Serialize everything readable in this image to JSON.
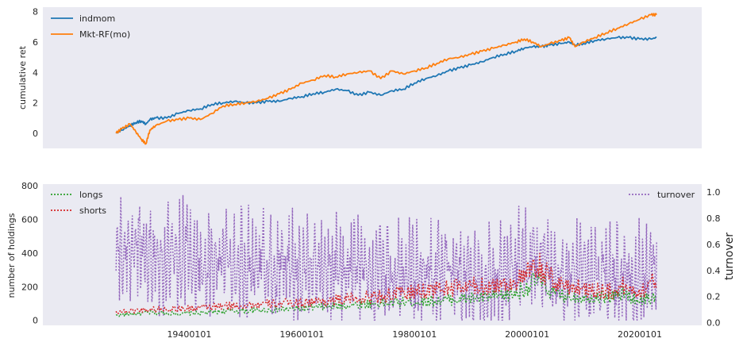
{
  "chart_data": [
    {
      "type": "line",
      "panel": "top",
      "title": "",
      "xlabel": "",
      "ylabel": "cumulative ret",
      "ylim": [
        -1.0,
        8.3
      ],
      "yticks": [
        0,
        2,
        4,
        6,
        8
      ],
      "grid": false,
      "background": "#eaeaf2",
      "legend": "top-left",
      "x": [
        1927.0,
        1928.0,
        1929.5,
        1930.5,
        1931.5,
        1932.3,
        1933.0,
        1934.0,
        1936.0,
        1938.0,
        1940.0,
        1942.0,
        1944.0,
        1946.0,
        1948.0,
        1950.0,
        1952.0,
        1954.0,
        1956.0,
        1958.0,
        1960.0,
        1962.0,
        1964.0,
        1966.0,
        1968.0,
        1970.0,
        1972.0,
        1974.0,
        1976.0,
        1978.0,
        1980.0,
        1982.0,
        1984.0,
        1986.0,
        1988.0,
        1990.0,
        1992.0,
        1994.0,
        1996.0,
        1998.0,
        1999.5,
        2001.0,
        2002.5,
        2004.0,
        2006.0,
        2007.5,
        2008.5,
        2010.0,
        2012.0,
        2014.0,
        2016.0,
        2018.0,
        2020.0,
        2022.0,
        2023.0
      ],
      "series": [
        {
          "name": "indmom",
          "color": "#1f77b4",
          "values": [
            0.0,
            0.2,
            0.5,
            0.7,
            0.8,
            0.6,
            0.9,
            1.0,
            1.0,
            1.3,
            1.5,
            1.6,
            1.9,
            2.0,
            2.1,
            2.0,
            2.0,
            2.1,
            2.1,
            2.3,
            2.4,
            2.6,
            2.7,
            2.9,
            2.8,
            2.5,
            2.7,
            2.5,
            2.8,
            2.9,
            3.3,
            3.6,
            3.8,
            4.1,
            4.3,
            4.5,
            4.7,
            5.0,
            5.2,
            5.4,
            5.6,
            5.7,
            5.7,
            5.8,
            5.9,
            6.0,
            5.8,
            5.9,
            6.1,
            6.2,
            6.3,
            6.3,
            6.2,
            6.2,
            6.3
          ]
        },
        {
          "name": "Mkt-RF(mo)",
          "color": "#ff7f0e",
          "values": [
            0.0,
            0.3,
            0.6,
            0.1,
            -0.4,
            -0.7,
            0.2,
            0.5,
            0.8,
            0.9,
            1.0,
            0.9,
            1.3,
            1.8,
            1.9,
            2.0,
            2.1,
            2.3,
            2.6,
            2.9,
            3.3,
            3.5,
            3.8,
            3.7,
            3.9,
            4.0,
            4.1,
            3.6,
            4.1,
            3.9,
            4.1,
            4.3,
            4.6,
            4.9,
            5.0,
            5.2,
            5.4,
            5.6,
            5.8,
            6.0,
            6.2,
            6.0,
            5.7,
            5.9,
            6.1,
            6.3,
            5.7,
            6.0,
            6.3,
            6.6,
            6.9,
            7.2,
            7.5,
            7.8,
            7.8
          ]
        }
      ]
    },
    {
      "type": "line",
      "panel": "bottom",
      "title": "",
      "xlabel": "",
      "ylabel": "number of holdings",
      "y2label": "turnover",
      "ylim": [
        -30,
        810
      ],
      "yticks": [
        0,
        200,
        400,
        600,
        800
      ],
      "y2lim": [
        -0.02,
        1.06
      ],
      "y2ticks": [
        0.0,
        0.2,
        0.4,
        0.6,
        0.8,
        1.0
      ],
      "xlim": [
        1914.0,
        2031.0
      ],
      "xticks": [
        1940.0,
        1960.0,
        1980.0,
        2000.0,
        2020.0
      ],
      "xticklabels": [
        "19400101",
        "19600101",
        "19800101",
        "20000101",
        "20200101"
      ],
      "legend": "top-left",
      "legend2": "top-right",
      "series": [
        {
          "name": "longs",
          "color": "#2ca02c",
          "axis": "left",
          "x": [
            1927,
            1933,
            1940,
            1947,
            1953,
            1960,
            1966,
            1973,
            1980,
            1985,
            1990,
            1995,
            1998,
            2000,
            2002,
            2005,
            2010,
            2015,
            2017,
            2020,
            2023
          ],
          "values": [
            30,
            45,
            40,
            55,
            60,
            70,
            85,
            100,
            110,
            120,
            130,
            140,
            160,
            200,
            240,
            150,
            140,
            140,
            160,
            120,
            140
          ]
        },
        {
          "name": "shorts",
          "color": "#d62728",
          "axis": "left",
          "x": [
            1927,
            1933,
            1940,
            1947,
            1953,
            1960,
            1966,
            1973,
            1980,
            1985,
            1990,
            1995,
            1998,
            2000,
            2002,
            2005,
            2010,
            2015,
            2017,
            2020,
            2023
          ],
          "values": [
            50,
            65,
            70,
            85,
            95,
            105,
            120,
            140,
            170,
            190,
            200,
            210,
            230,
            270,
            320,
            220,
            190,
            170,
            200,
            170,
            240
          ]
        },
        {
          "name": "turnover",
          "color": "#9467bd",
          "axis": "right",
          "x": [
            1927,
            1931,
            1935,
            1939,
            1943,
            1947,
            1951,
            1955,
            1959,
            1963,
            1967,
            1971,
            1975,
            1979,
            1983,
            1987,
            1991,
            1995,
            1999,
            2003,
            2007,
            2011,
            2015,
            2019,
            2023
          ],
          "values": [
            0.5,
            0.6,
            0.45,
            0.55,
            0.45,
            0.5,
            0.45,
            0.45,
            0.4,
            0.45,
            0.4,
            0.4,
            0.35,
            0.4,
            0.35,
            0.4,
            0.35,
            0.4,
            0.45,
            0.4,
            0.35,
            0.35,
            0.35,
            0.35,
            0.4
          ]
        }
      ]
    }
  ]
}
